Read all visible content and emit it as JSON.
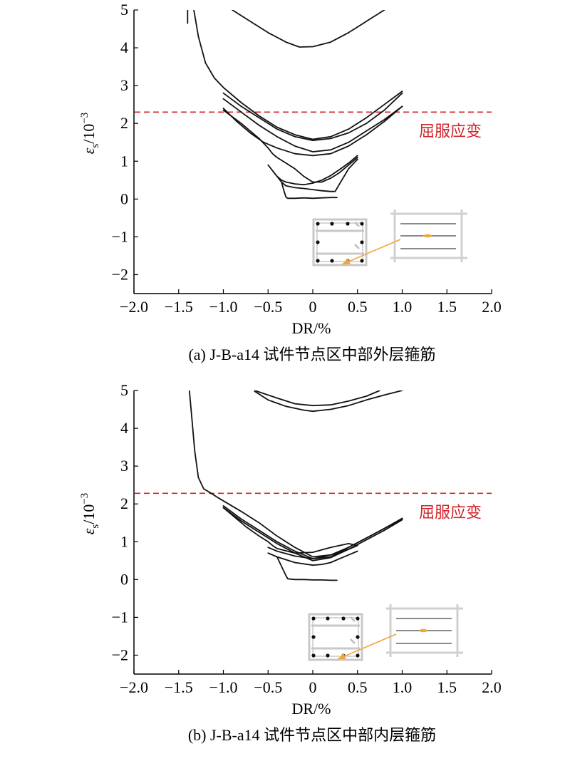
{
  "chart_data": [
    {
      "type": "line",
      "panel_id": "a",
      "caption": "(a) J-B-a14 试件节点区中部外层箍筋",
      "xlabel": "DR/%",
      "ylabel_main": "ε",
      "ylabel_sub": "s",
      "ylabel_unit": "/10",
      "ylabel_exp": "−3",
      "xlim": [
        -2.0,
        2.0
      ],
      "ylim": [
        -2.5,
        5
      ],
      "x_ticks": [
        -2.0,
        -1.5,
        -1.0,
        -0.5,
        0,
        0.5,
        1.0,
        1.5,
        2.0
      ],
      "x_tick_labels": [
        "−2.0",
        "−1.5",
        "−1.0",
        "−0.5",
        "0",
        "0.5",
        "1.0",
        "1.5",
        "2.0"
      ],
      "y_ticks": [
        -2,
        -1,
        0,
        1,
        2,
        3,
        4,
        5
      ],
      "y_tick_labels": [
        "−2",
        "−1",
        "0",
        "1",
        "2",
        "3",
        "4",
        "5"
      ],
      "yield_line": {
        "value": 2.3,
        "label": "屈服应变",
        "color": "#d2232a"
      },
      "series": [
        {
          "x": [
            -1.4,
            -1.4
          ],
          "y": [
            4.65,
            5.0
          ]
        },
        {
          "x": [
            -1.33,
            -1.28,
            -1.2,
            -1.1,
            -1.0,
            -0.8,
            -0.6,
            -0.4,
            -0.2,
            0.0,
            0.2,
            0.4,
            0.6,
            0.8,
            1.0
          ],
          "y": [
            5.0,
            4.3,
            3.6,
            3.2,
            2.95,
            2.55,
            2.2,
            1.9,
            1.7,
            1.58,
            1.65,
            1.85,
            2.15,
            2.5,
            2.85
          ]
        },
        {
          "x": [
            -0.9,
            -0.7,
            -0.5,
            -0.3,
            -0.15,
            0.0,
            0.2,
            0.4,
            0.6,
            0.8
          ],
          "y": [
            5.0,
            4.7,
            4.4,
            4.15,
            4.02,
            4.03,
            4.15,
            4.4,
            4.7,
            5.0
          ]
        },
        {
          "x": [
            -1.0,
            -0.8,
            -0.6,
            -0.4,
            -0.2,
            0.0,
            0.2,
            0.4,
            0.6,
            0.8,
            1.0
          ],
          "y": [
            2.8,
            2.45,
            2.15,
            1.85,
            1.65,
            1.55,
            1.6,
            1.75,
            2.0,
            2.35,
            2.8
          ]
        },
        {
          "x": [
            -1.0,
            -0.8,
            -0.6,
            -0.4,
            -0.2,
            0.0,
            0.2,
            0.4,
            0.6,
            0.8,
            1.0
          ],
          "y": [
            2.65,
            2.3,
            1.95,
            1.65,
            1.4,
            1.25,
            1.3,
            1.5,
            1.8,
            2.1,
            2.45
          ]
        },
        {
          "x": [
            -1.0,
            -0.85,
            -0.7,
            -0.55,
            -0.4,
            -0.2,
            0.0,
            0.2,
            0.4,
            0.6,
            0.8,
            1.0
          ],
          "y": [
            2.4,
            2.05,
            1.75,
            1.5,
            1.35,
            1.2,
            1.15,
            1.2,
            1.4,
            1.7,
            2.05,
            2.45
          ]
        },
        {
          "x": [
            -1.0,
            -0.8,
            -0.6,
            -0.5,
            -0.45,
            -0.4,
            -0.3,
            -0.2,
            -0.1,
            0.0,
            0.1,
            0.2,
            0.3,
            0.4,
            0.5
          ],
          "y": [
            2.35,
            2.0,
            1.6,
            1.35,
            1.2,
            1.1,
            0.95,
            0.8,
            0.6,
            0.45,
            0.45,
            0.55,
            0.7,
            0.9,
            1.1
          ]
        },
        {
          "x": [
            -0.5,
            -0.45,
            -0.4,
            -0.35,
            -0.3,
            -0.2,
            -0.1,
            0.0,
            0.1,
            0.2,
            0.3,
            0.4,
            0.5
          ],
          "y": [
            0.9,
            0.75,
            0.6,
            0.5,
            0.45,
            0.4,
            0.38,
            0.42,
            0.5,
            0.62,
            0.78,
            0.95,
            1.15
          ]
        },
        {
          "x": [
            -0.45,
            -0.4,
            -0.35,
            -0.3,
            -0.2,
            -0.1,
            0.0,
            0.1,
            0.2,
            0.25,
            0.3,
            0.4,
            0.5
          ],
          "y": [
            0.75,
            0.6,
            0.45,
            0.35,
            0.3,
            0.28,
            0.25,
            0.22,
            0.2,
            0.2,
            0.4,
            0.8,
            1.05
          ]
        },
        {
          "x": [
            -0.35,
            -0.32,
            -0.3,
            -0.28,
            -0.2,
            -0.1,
            0.0,
            0.1,
            0.2,
            0.27
          ],
          "y": [
            0.45,
            0.2,
            0.05,
            0.02,
            0.02,
            0.03,
            0.02,
            0.03,
            0.04,
            0.04
          ]
        }
      ]
    },
    {
      "type": "line",
      "panel_id": "b",
      "caption": "(b) J-B-a14 试件节点区中部内层箍筋",
      "xlabel": "DR/%",
      "ylabel_main": "ε",
      "ylabel_sub": "s",
      "ylabel_unit": "/10",
      "ylabel_exp": "−3",
      "xlim": [
        -2.0,
        2.0
      ],
      "ylim": [
        -2.5,
        5
      ],
      "x_ticks": [
        -2.0,
        -1.5,
        -1.0,
        -0.5,
        0,
        0.5,
        1.0,
        1.5,
        2.0
      ],
      "x_tick_labels": [
        "−2.0",
        "−1.5",
        "−1.0",
        "−0.5",
        "0",
        "0.5",
        "1.0",
        "1.5",
        "2.0"
      ],
      "y_ticks": [
        -2,
        -1,
        0,
        1,
        2,
        3,
        4,
        5
      ],
      "y_tick_labels": [
        "−2",
        "−1",
        "0",
        "1",
        "2",
        "3",
        "4",
        "5"
      ],
      "yield_line": {
        "value": 2.28,
        "label": "屈服应变",
        "color": "#d2232a"
      },
      "series": [
        {
          "x": [
            -1.38,
            -1.35,
            -1.32,
            -1.28,
            -1.22,
            -1.15,
            -1.05,
            -0.8,
            -0.6,
            -0.4,
            -0.2,
            0.0,
            0.2,
            0.4,
            0.6,
            0.8,
            1.0
          ],
          "y": [
            5.0,
            4.2,
            3.4,
            2.7,
            2.4,
            2.3,
            2.15,
            1.8,
            1.5,
            1.15,
            0.85,
            0.6,
            0.65,
            0.85,
            1.1,
            1.35,
            1.6
          ]
        },
        {
          "x": [
            -0.65,
            -0.4,
            -0.2,
            0.0,
            0.2,
            0.4,
            0.6,
            0.75
          ],
          "y": [
            5.0,
            4.8,
            4.65,
            4.6,
            4.62,
            4.72,
            4.85,
            5.0
          ]
        },
        {
          "x": [
            -0.65,
            -0.5,
            -0.3,
            -0.1,
            0.0,
            0.2,
            0.4,
            0.6,
            0.8,
            1.0
          ],
          "y": [
            4.98,
            4.75,
            4.58,
            4.48,
            4.45,
            4.5,
            4.6,
            4.75,
            4.88,
            5.0
          ]
        },
        {
          "x": [
            -1.0,
            -0.8,
            -0.6,
            -0.4,
            -0.2,
            0.0,
            0.2,
            0.4,
            0.6,
            0.8,
            1.0
          ],
          "y": [
            1.95,
            1.6,
            1.3,
            1.0,
            0.75,
            0.55,
            0.6,
            0.85,
            1.1,
            1.35,
            1.62
          ]
        },
        {
          "x": [
            -1.0,
            -0.8,
            -0.6,
            -0.4,
            -0.2,
            0.0,
            0.2,
            0.4,
            0.6,
            0.8,
            1.0
          ],
          "y": [
            1.9,
            1.55,
            1.25,
            0.95,
            0.7,
            0.5,
            0.58,
            0.8,
            1.05,
            1.3,
            1.58
          ]
        },
        {
          "x": [
            -1.0,
            -0.9,
            -0.75,
            -0.6,
            -0.5,
            -0.45,
            -0.4,
            -0.2,
            0.0,
            0.2,
            0.4,
            0.5
          ],
          "y": [
            1.9,
            1.7,
            1.4,
            1.15,
            1.0,
            0.9,
            0.82,
            0.7,
            0.72,
            0.85,
            0.95,
            0.9
          ]
        },
        {
          "x": [
            -0.5,
            -0.4,
            -0.2,
            0.0,
            0.2,
            0.4,
            0.5
          ],
          "y": [
            0.85,
            0.75,
            0.62,
            0.55,
            0.65,
            0.8,
            0.9
          ]
        },
        {
          "x": [
            -0.5,
            -0.4,
            -0.2,
            0.0,
            0.1,
            0.2,
            0.3,
            0.4,
            0.5
          ],
          "y": [
            0.7,
            0.6,
            0.45,
            0.38,
            0.4,
            0.45,
            0.55,
            0.65,
            0.75
          ]
        },
        {
          "x": [
            -0.4,
            -0.35,
            -0.3,
            -0.28,
            -0.2,
            -0.1,
            0.0,
            0.1,
            0.2,
            0.27
          ],
          "y": [
            0.6,
            0.35,
            0.1,
            0.02,
            0.0,
            0.0,
            -0.01,
            -0.01,
            -0.02,
            -0.02
          ]
        }
      ]
    }
  ],
  "inset_colors": {
    "section_box": "#c8c8c8",
    "rebar": "#111111",
    "gauge": "#f0a63a",
    "hoop_line": "#8a8a8a"
  },
  "icons": [
    "column-section-icon",
    "strain-gauge-icon",
    "pointer-arrow-icon"
  ]
}
